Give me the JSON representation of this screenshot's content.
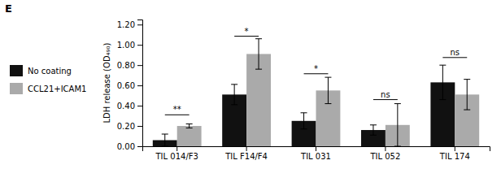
{
  "chart_data": {
    "type": "bar",
    "title": "E",
    "y_label": "LDH release (OD₄₉₀)",
    "categories": [
      "TIL 014/F3",
      "TIL F14/F4",
      "TIL 031",
      "TIL 052",
      "TIL 174"
    ],
    "series": [
      {
        "name": "No coating",
        "color": "#111111",
        "values": [
          0.06,
          0.51,
          0.25,
          0.16,
          0.63
        ],
        "errors": [
          0.06,
          0.1,
          0.08,
          0.05,
          0.17
        ]
      },
      {
        "name": "CCL21+ICAM1",
        "color": "#aaaaaa",
        "values": [
          0.2,
          0.91,
          0.55,
          0.21,
          0.51
        ],
        "errors": [
          0.02,
          0.15,
          0.13,
          0.21,
          0.15
        ]
      }
    ],
    "ylim": [
      0,
      1.25
    ],
    "yticks": [
      {
        "value": 0,
        "label": "0.00"
      },
      {
        "value": 0.2,
        "label": "0.20"
      },
      {
        "value": 0.4,
        "label": "0.40"
      },
      {
        "value": 0.6,
        "label": "0.60"
      },
      {
        "value": 0.8,
        "label": "0.80"
      },
      {
        "value": 1,
        "label": "1.00"
      },
      {
        "value": 1.2,
        "label": "1.20"
      }
    ],
    "annotations": [
      {
        "category": "TIL 014/F3",
        "label": "**",
        "y": 0.31
      },
      {
        "category": "TIL F14/F4",
        "label": "*",
        "y": 1.085
      },
      {
        "category": "TIL 031",
        "label": "*",
        "y": 0.715
      },
      {
        "category": "TIL 052",
        "label": "ns",
        "y": 0.46
      },
      {
        "category": "TIL 174",
        "label": "ns",
        "y": 0.875
      }
    ],
    "legend": "left",
    "grid": false
  }
}
